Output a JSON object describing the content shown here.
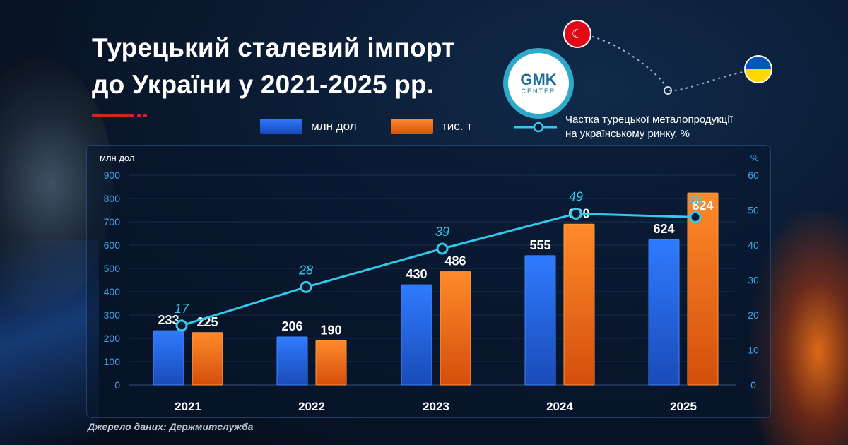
{
  "title": {
    "line1": "Турецький сталевий імпорт",
    "line2": "до України у 2021-2025 рр."
  },
  "logo": {
    "main": "GMK",
    "sub": "CENTER"
  },
  "legend": {
    "usd": "млн дол",
    "tonnes": "тис. т",
    "share_line1": "Частка турецької металопродукції",
    "share_line2": "на українському ринку, %"
  },
  "source": "Джерело даних: Держмитслужба",
  "colors": {
    "usd_bar": "#1f5fd6",
    "tonnes_bar": "#f26a18",
    "share_line": "#35c8e8",
    "accent_red": "#d6202a"
  },
  "icons": [
    "turkey-flag-icon",
    "ukraine-flag-icon"
  ],
  "chart_data": {
    "type": "bar",
    "categories": [
      "2021",
      "2022",
      "2023",
      "2024",
      "2025"
    ],
    "series": [
      {
        "name": "млн дол",
        "type": "bar",
        "values": [
          233,
          206,
          430,
          555,
          624
        ]
      },
      {
        "name": "тис. т",
        "type": "bar",
        "values": [
          225,
          190,
          486,
          690,
          824
        ]
      },
      {
        "name": "Частка турецької металопродукції на українському ринку, %",
        "type": "line",
        "axis": "right",
        "values": [
          17,
          28,
          39,
          49,
          48
        ]
      }
    ],
    "ylabel": "млн дол",
    "ylabel_right": "%",
    "ylim": [
      0,
      900
    ],
    "ylim_right": [
      0,
      60
    ],
    "yticks": [
      "0",
      "100",
      "200",
      "300",
      "400",
      "500",
      "600",
      "700",
      "800",
      "900"
    ],
    "yticks_right": [
      "0",
      "10",
      "20",
      "30",
      "40",
      "50",
      "60"
    ],
    "grid": true,
    "legend_position": "top"
  }
}
